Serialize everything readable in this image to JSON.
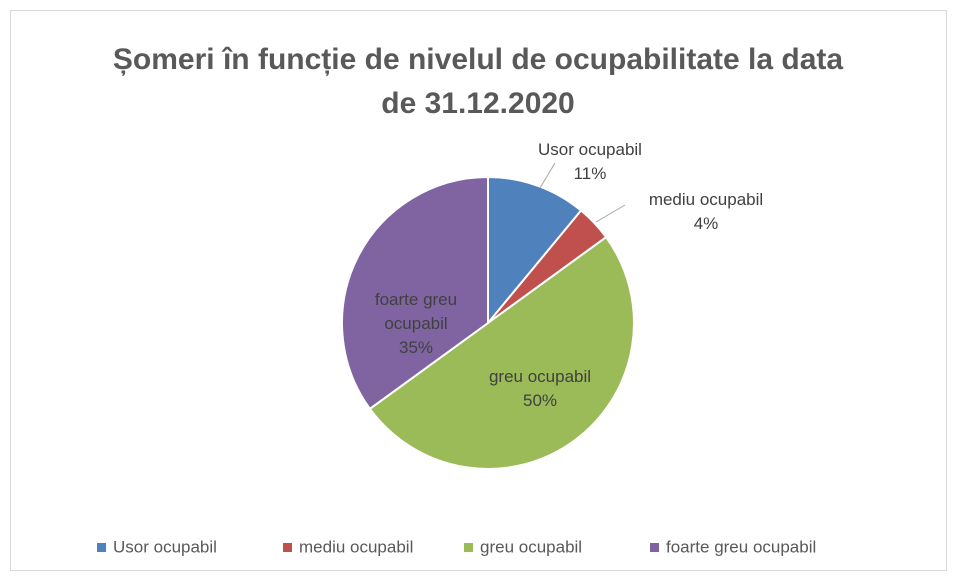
{
  "chart_data": {
    "type": "pie",
    "title": "Șomeri în funcție de nivelul de ocupabilitate la data de 31.12.2020",
    "categories": [
      "Usor ocupabil",
      "mediu ocupabil",
      "greu ocupabil",
      "foarte greu ocupabil"
    ],
    "values": [
      11,
      4,
      50,
      35
    ],
    "value_labels": [
      "11%",
      "4%",
      "50%",
      "35%"
    ],
    "colors": [
      "#4f81bd",
      "#c0504d",
      "#9bbb59",
      "#8064a2"
    ],
    "legend": "bottom"
  }
}
